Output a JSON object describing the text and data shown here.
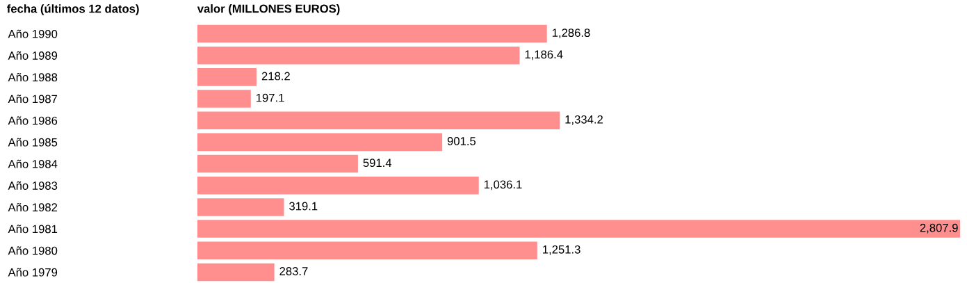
{
  "chart_data": {
    "type": "bar",
    "orientation": "horizontal",
    "ylabel": "fecha (últimos 12 datos)",
    "xlabel": "valor (MILLONES EUROS)",
    "categories": [
      "Año 1990",
      "Año 1989",
      "Año 1988",
      "Año 1987",
      "Año 1986",
      "Año 1985",
      "Año 1984",
      "Año 1983",
      "Año 1982",
      "Año 1981",
      "Año 1980",
      "Año 1979"
    ],
    "values": [
      1286.8,
      1186.4,
      218.2,
      197.1,
      1334.2,
      901.5,
      591.4,
      1036.1,
      319.1,
      2807.9,
      1251.3,
      283.7
    ],
    "value_labels": [
      "1,286.8",
      "1,186.4",
      "218.2",
      "197.1",
      "1,334.2",
      "901.5",
      "591.4",
      "1,036.1",
      "319.1",
      "2,807.9",
      "1,251.3",
      "283.7"
    ],
    "color": "#ff8f8f",
    "grid": false,
    "legend": false,
    "tick_labels": "y"
  }
}
